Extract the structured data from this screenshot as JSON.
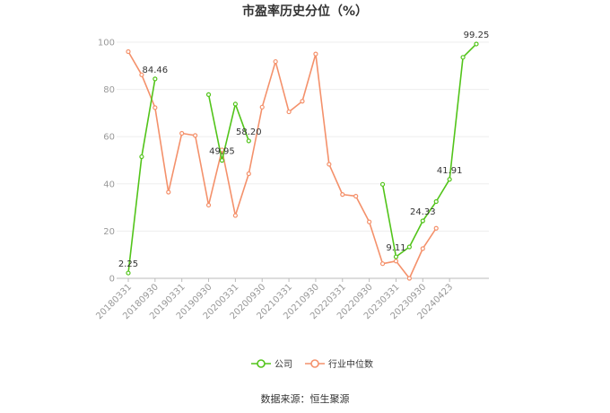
{
  "chart_data": {
    "type": "line",
    "title": "市盈率历史分位（%）",
    "source": "数据来源：恒生聚源",
    "ylim": [
      0,
      100
    ],
    "yticks": [
      0,
      20,
      40,
      60,
      80,
      100
    ],
    "grid": true,
    "legend_position": "bottom-center",
    "x_labels": [
      "20180331",
      "20180930",
      "20190331",
      "20190930",
      "20200331",
      "20200930",
      "20210331",
      "20210930",
      "20220331",
      "20220930",
      "20230331",
      "20230930",
      "20240423"
    ],
    "series": [
      {
        "name": "公司",
        "color": "#52c41a",
        "values": [
          2.25,
          51.5,
          84.46,
          null,
          null,
          null,
          77.8,
          49.95,
          73.8,
          58.2,
          null,
          null,
          null,
          null,
          null,
          null,
          null,
          null,
          null,
          39.8,
          9.11,
          13.3,
          24.33,
          32.5,
          41.91,
          93.6,
          99.25
        ],
        "labels": [
          {
            "index": 0,
            "text": "2.25"
          },
          {
            "index": 2,
            "text": "84.46"
          },
          {
            "index": 7,
            "text": "49.95"
          },
          {
            "index": 9,
            "text": "58.20"
          },
          {
            "index": 20,
            "text": "9.11"
          },
          {
            "index": 22,
            "text": "24.33"
          },
          {
            "index": 24,
            "text": "41.91"
          },
          {
            "index": 26,
            "text": "99.25"
          }
        ]
      },
      {
        "name": "行业中位数",
        "color": "#f4916b",
        "values": [
          96.0,
          86.2,
          72.3,
          36.5,
          61.4,
          60.5,
          31.0,
          54.4,
          26.6,
          44.3,
          72.5,
          91.8,
          70.5,
          75.0,
          95.0,
          48.3,
          35.5,
          34.8,
          23.9,
          6.2,
          7.3,
          0.0,
          12.6,
          21.2
        ]
      }
    ]
  }
}
